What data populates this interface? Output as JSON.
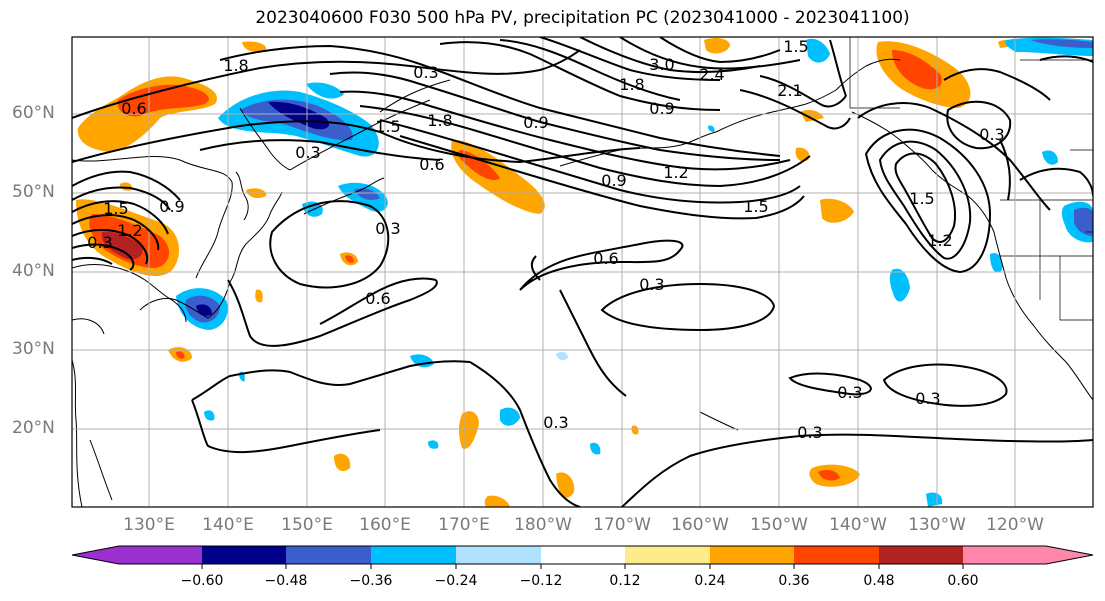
{
  "title": "2023040600 F030 500 hPa PV, precipitation PC (2023041000 - 2023041100)",
  "lat_labels": [
    "60°N",
    "50°N",
    "40°N",
    "30°N",
    "20°N"
  ],
  "lon_labels": [
    "130°E",
    "140°E",
    "150°E",
    "160°E",
    "170°E",
    "180°W",
    "170°W",
    "160°W",
    "150°W",
    "140°W",
    "130°W",
    "120°W"
  ],
  "colorbar": {
    "tick_labels": [
      "−0.60",
      "−0.48",
      "−0.36",
      "−0.24",
      "−0.12",
      "0.12",
      "0.24",
      "0.36",
      "0.48",
      "0.60"
    ],
    "colors": [
      "#9b30d0",
      "#00008b",
      "#3a5fcd",
      "#00bfff",
      "#b0e2ff",
      "#ffffff",
      "#ffeb8a",
      "#ffa500",
      "#ff4500",
      "#b22222",
      "#ff88aa"
    ]
  },
  "contour_labels": [
    "1.8",
    "0.3",
    "0.6",
    "1.5",
    "0.3",
    "1.8",
    "0.9",
    "0.6",
    "1.2",
    "1.5",
    "0.3",
    "1.5",
    "1.2",
    "0.3",
    "0.9",
    "1.5",
    "0.3",
    "0.6",
    "0.6",
    "0.3",
    "0.3",
    "0.3",
    "0.3",
    "0.3",
    "3.0",
    "2.4",
    "1.8",
    "0.9",
    "2.1",
    "1.5",
    "1.2",
    "0.9"
  ]
}
